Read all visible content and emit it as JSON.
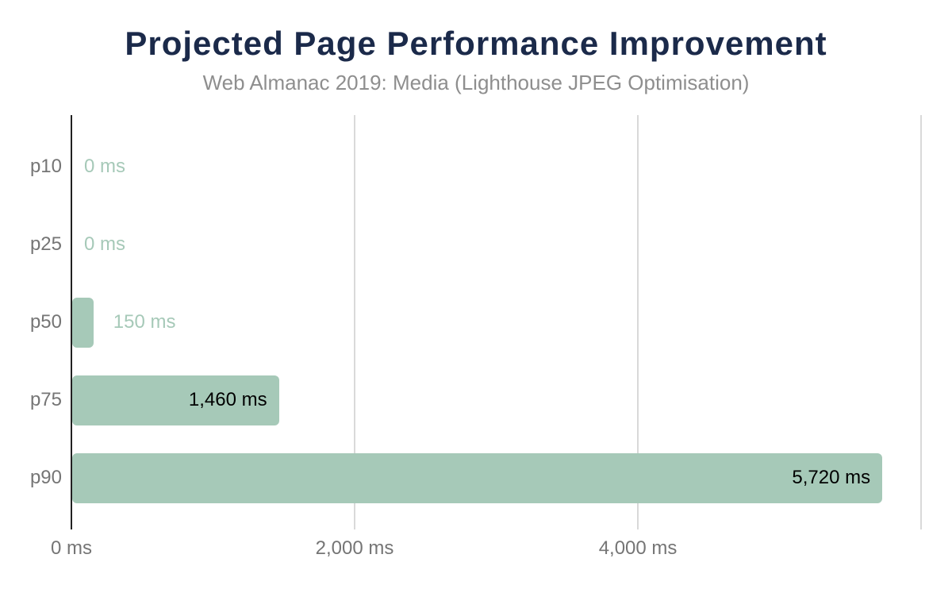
{
  "page": {
    "background": "#ffffff"
  },
  "chart_data": {
    "type": "bar",
    "orientation": "horizontal",
    "title": "Projected Page Performance Improvement",
    "subtitle": "Web Almanac 2019: Media (Lighthouse JPEG Optimisation)",
    "categories": [
      "p10",
      "p25",
      "p50",
      "p75",
      "p90"
    ],
    "values": [
      0,
      0,
      150,
      1460,
      5720
    ],
    "value_labels": [
      "0 ms",
      "0 ms",
      "150 ms",
      "1,460 ms",
      "5,720 ms"
    ],
    "label_placements": [
      "outside",
      "outside",
      "outside",
      "inside",
      "inside"
    ],
    "unit": "ms",
    "xlabel": "",
    "ylabel": "",
    "xlim": [
      0,
      6050
    ],
    "x_ticks": [
      {
        "value": 0,
        "label": "0 ms"
      },
      {
        "value": 2000,
        "label": "2,000 ms"
      },
      {
        "value": 4000,
        "label": "4,000 ms"
      },
      {
        "value": 6000,
        "label": ""
      }
    ],
    "grid": "vertical",
    "legend": "none",
    "colors": {
      "bar": "#a6c9b8",
      "value_label_outside": "#a6c9b8",
      "value_label_inside": "#000000",
      "title": "#1b2a4a",
      "subtitle": "#8e8e8e",
      "category_label": "#757575",
      "tick_label": "#757575",
      "gridline": "#d9d9d9",
      "axis_line": "#212121",
      "background": "#ffffff"
    }
  }
}
